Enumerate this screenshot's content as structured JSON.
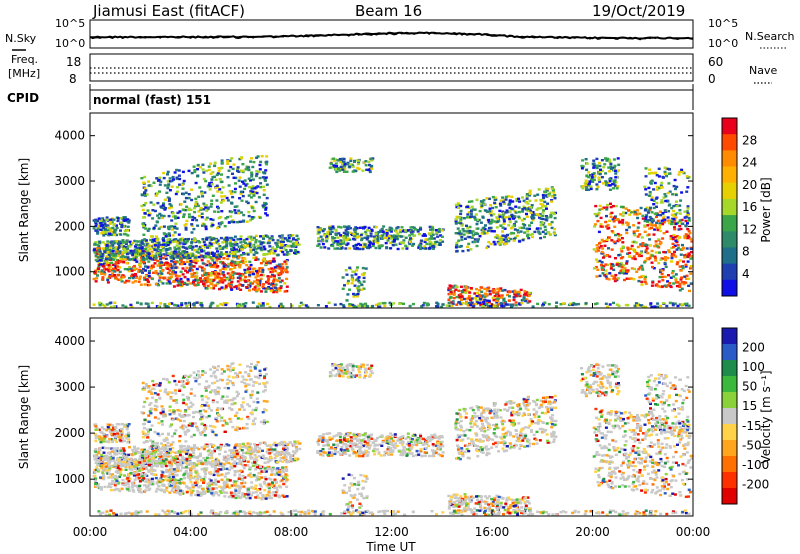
{
  "header": {
    "station": "Jiamusi East (fitACF)",
    "beam": "Beam 16",
    "date": "19/Oct/2019"
  },
  "noise_panel": {
    "left_label": "N.Sky",
    "right_label": "N.Search",
    "left_ticks": [
      "10^5",
      "10^0"
    ],
    "right_ticks": [
      "10^5",
      "10^0"
    ]
  },
  "freq_panel": {
    "label_line1": "Freq.",
    "label_line2": "[MHz]",
    "left_ticks": [
      "18",
      "8"
    ],
    "right_ticks": [
      "60",
      "0"
    ],
    "right_label": "Nave"
  },
  "cpid_panel": {
    "label": "CPID",
    "mode": "normal (fast) 151"
  },
  "power_colorbar": {
    "label": "Power [dB]",
    "ticks": [
      "28",
      "24",
      "20",
      "16",
      "12",
      "8",
      "4"
    ],
    "colors": [
      "#e8001c",
      "#ff4a00",
      "#ff8c00",
      "#ffb000",
      "#e6d000",
      "#a6d82a",
      "#3aa648",
      "#2f8a6a",
      "#1f6f8a",
      "#1f3fb0",
      "#1010e6"
    ]
  },
  "velocity_colorbar": {
    "label": "Velocity [m s⁻¹]",
    "ticks": [
      "200",
      "100",
      "50",
      "15",
      "-15",
      "-50",
      "-100",
      "-200"
    ],
    "colors": [
      "#1a1ab0",
      "#2a5cc8",
      "#1e8c4a",
      "#3cb83c",
      "#8ad23a",
      "#c8c8c8",
      "#ffd24a",
      "#ffa51e",
      "#ff7000",
      "#ff3000",
      "#e00000"
    ]
  },
  "chart_data": [
    {
      "type": "heatmap",
      "quantity": "Power",
      "xlabel": "Time UT",
      "ylabel": "Slant Range [km]",
      "xlim": [
        0,
        24
      ],
      "ylim": [
        200,
        4500
      ],
      "yticks": [
        "1000",
        "2000",
        "3000",
        "4000"
      ],
      "xticks": [
        "00:00",
        "04:00",
        "08:00",
        "12:00",
        "16:00",
        "20:00",
        "00:00"
      ],
      "colorbar_range": [
        3,
        30
      ],
      "grid": false
    },
    {
      "type": "heatmap",
      "quantity": "Velocity",
      "xlabel": "Time UT",
      "ylabel": "Slant Range [km]",
      "xlim": [
        0,
        24
      ],
      "ylim": [
        200,
        4500
      ],
      "yticks": [
        "1000",
        "2000",
        "3000",
        "4000"
      ],
      "xticks": [
        "00:00",
        "04:00",
        "08:00",
        "12:00",
        "16:00",
        "20:00",
        "00:00"
      ],
      "colorbar_range": [
        -200,
        200
      ],
      "grid": false
    }
  ]
}
